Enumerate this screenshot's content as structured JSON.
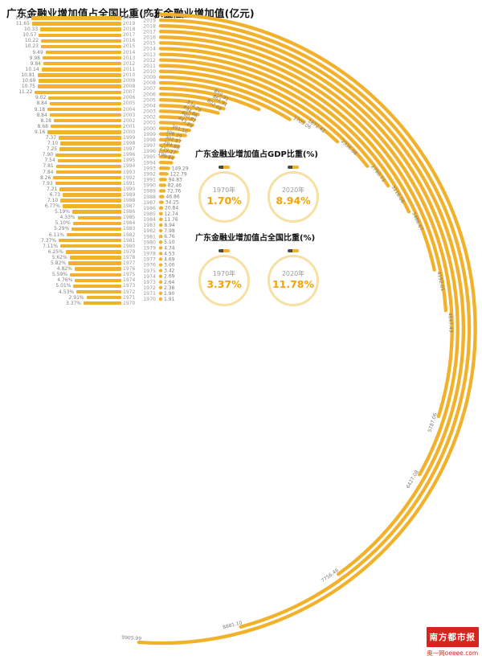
{
  "colors": {
    "bar_gold": "#F2B12B",
    "ring_pale_gold": "#F7E0A4",
    "stat_value_gold": "#F2A40A",
    "label_gray": "#7a7a7a",
    "year_gray": "#9a9a9a",
    "title_black": "#111111",
    "logo_red": "#D6251D",
    "mini_bar_dark": "#4a4a4a"
  },
  "chart_data": [
    {
      "type": "bar",
      "variant": "horizontal-right-anchored",
      "title": "广东金融业增加值占全国比重(%)",
      "unit": "%",
      "xlim": [
        0,
        12
      ],
      "categories": [
        "2020",
        "2019",
        "2018",
        "2017",
        "2016",
        "2015",
        "2014",
        "2013",
        "2012",
        "2011",
        "2010",
        "2009",
        "2008",
        "2007",
        "2006",
        "2005",
        "2004",
        "2003",
        "2002",
        "2001",
        "2000",
        "1999",
        "1998",
        "1997",
        "1996",
        "1995",
        "1994",
        "1993",
        "1992",
        "1991",
        "1990",
        "1989",
        "1988",
        "1987",
        "1986",
        "1985",
        "1984",
        "1983",
        "1982",
        "1981",
        "1980",
        "1979",
        "1978",
        "1977",
        "1976",
        "1975",
        "1974",
        "1973",
        "1972",
        "1971",
        "1970"
      ],
      "values": [
        11.78,
        11.65,
        10.33,
        10.57,
        10.22,
        10.23,
        9.49,
        9.98,
        9.84,
        10.14,
        10.81,
        10.69,
        10.75,
        11.22,
        9.02,
        8.84,
        9.18,
        8.84,
        8.18,
        8.68,
        9.16,
        7.37,
        7.1,
        7.25,
        7.9,
        7.54,
        7.81,
        7.84,
        8.26,
        7.93,
        7.21,
        6.73,
        7.1,
        6.77,
        5.19,
        4.33,
        5.1,
        5.29,
        6.11,
        7.37,
        7.11,
        6.25,
        5.62,
        5.82,
        4.82,
        5.59,
        4.76,
        5.01,
        4.53,
        2.91,
        3.37
      ],
      "value_labels": [
        "11.78",
        "11.65",
        "10.33",
        "10.57",
        "10.22",
        "10.23",
        "9.49",
        "9.98",
        "9.84",
        "10.14",
        "10.81",
        "10.69",
        "10.75",
        "11.22",
        "9.02",
        "8.84",
        "9.18",
        "8.84",
        "8.18",
        "8.68",
        "9.16",
        "7.37",
        "7.10",
        "7.25",
        "7.90",
        "7.54",
        "7.81",
        "7.84",
        "8.26",
        "7.93",
        "7.21",
        "6.73",
        "7.10",
        "6.77%",
        "5.19%",
        "4.33%",
        "5.10%",
        "5.29%",
        "6.11%",
        "7.37%",
        "7.11%",
        "6.25%",
        "5.62%",
        "5.82%",
        "4.82%",
        "5.59%",
        "4.76%",
        "5.01%",
        "4.53%",
        "2.91%",
        "3.37%"
      ],
      "legend": "none",
      "grid": false
    },
    {
      "type": "bar",
      "variant": "radial-arc",
      "title": "广东金融业增加值(亿元)",
      "unit": "亿元",
      "angle_range_deg": [
        0,
        184
      ],
      "categories": [
        "2020",
        "2019",
        "2018",
        "2017",
        "2016",
        "2015",
        "2014",
        "2013",
        "2012",
        "2011",
        "2010",
        "2009",
        "2008",
        "2007",
        "2006",
        "2005",
        "2004",
        "2003",
        "2002",
        "2001",
        "2000",
        "1999",
        "1998",
        "1997",
        "1996",
        "1995",
        "1994",
        "1993",
        "1992",
        "1991",
        "1990",
        "1989",
        "1988",
        "1987",
        "1986",
        "1985",
        "1984",
        "1983",
        "1982",
        "1981",
        "1980",
        "1979",
        "1978",
        "1977",
        "1976",
        "1975",
        "1974",
        "1973",
        "1972",
        "1971",
        "1970"
      ],
      "values": [
        9905.99,
        8881.1,
        7756.46,
        6427.08,
        5787.06,
        4647.43,
        4192.01,
        3486.67,
        3116.08,
        2790.73,
        2336.08,
        1872.42,
        1705.06,
        1300,
        859.91,
        861.91,
        802.68,
        534.26,
        494.66,
        480.81,
        443.89,
        391.1,
        306.39,
        302.87,
        284.88,
        229.27,
        199.84,
        149.29,
        122.79,
        94.83,
        82.46,
        72.76,
        46.86,
        34.25,
        20.84,
        12.74,
        11.76,
        8.94,
        7.98,
        6.76,
        5.1,
        4.74,
        4.53,
        4.69,
        3.0,
        3.42,
        2.69,
        2.64,
        2.38,
        1.9,
        1.91
      ],
      "value_labels": [
        "9905.99",
        "8881.10",
        "7756.46",
        "6427.08",
        "5787.06",
        "4647.43",
        "4192.01",
        "3486.67",
        "3116.08",
        "2790.73",
        "2336.08",
        "1872.42",
        "1705.06",
        null,
        "859.91",
        "861.91",
        "802.68",
        "534.26",
        "494.66",
        "480.81",
        "443.89",
        "391.10",
        "306.39",
        "302.87",
        "284.88",
        "229.27",
        "199.84",
        "149.29",
        "122.79",
        "94.83",
        "82.46",
        "72.76",
        "46.86",
        "34.25",
        "20.84",
        "12.74",
        "11.76",
        "8.94",
        "7.98",
        "6.76",
        "5.10",
        "4.74",
        "4.53",
        "4.69",
        "3.00",
        "3.42",
        "2.69",
        "2.64",
        "2.38",
        "1.90",
        "1.91"
      ],
      "note": "arcs start at top and sweep clockwise, length proportional to value; 2007 arc label not legible in source, value estimated",
      "legend": "none",
      "grid": false
    }
  ],
  "panels": [
    {
      "title": "广东金融业增加值占GDP比重(%)",
      "stats": [
        {
          "year": "1970年",
          "value": "1.70%"
        },
        {
          "year": "2020年",
          "value": "8.94%"
        }
      ]
    },
    {
      "title": "广东金融业增加值占全国比重(%)",
      "stats": [
        {
          "year": "1970年",
          "value": "3.37%"
        },
        {
          "year": "2020年",
          "value": "11.78%"
        }
      ]
    }
  ],
  "logo": {
    "paper": "南方都市报",
    "site": "奥一网oeeee.com"
  }
}
